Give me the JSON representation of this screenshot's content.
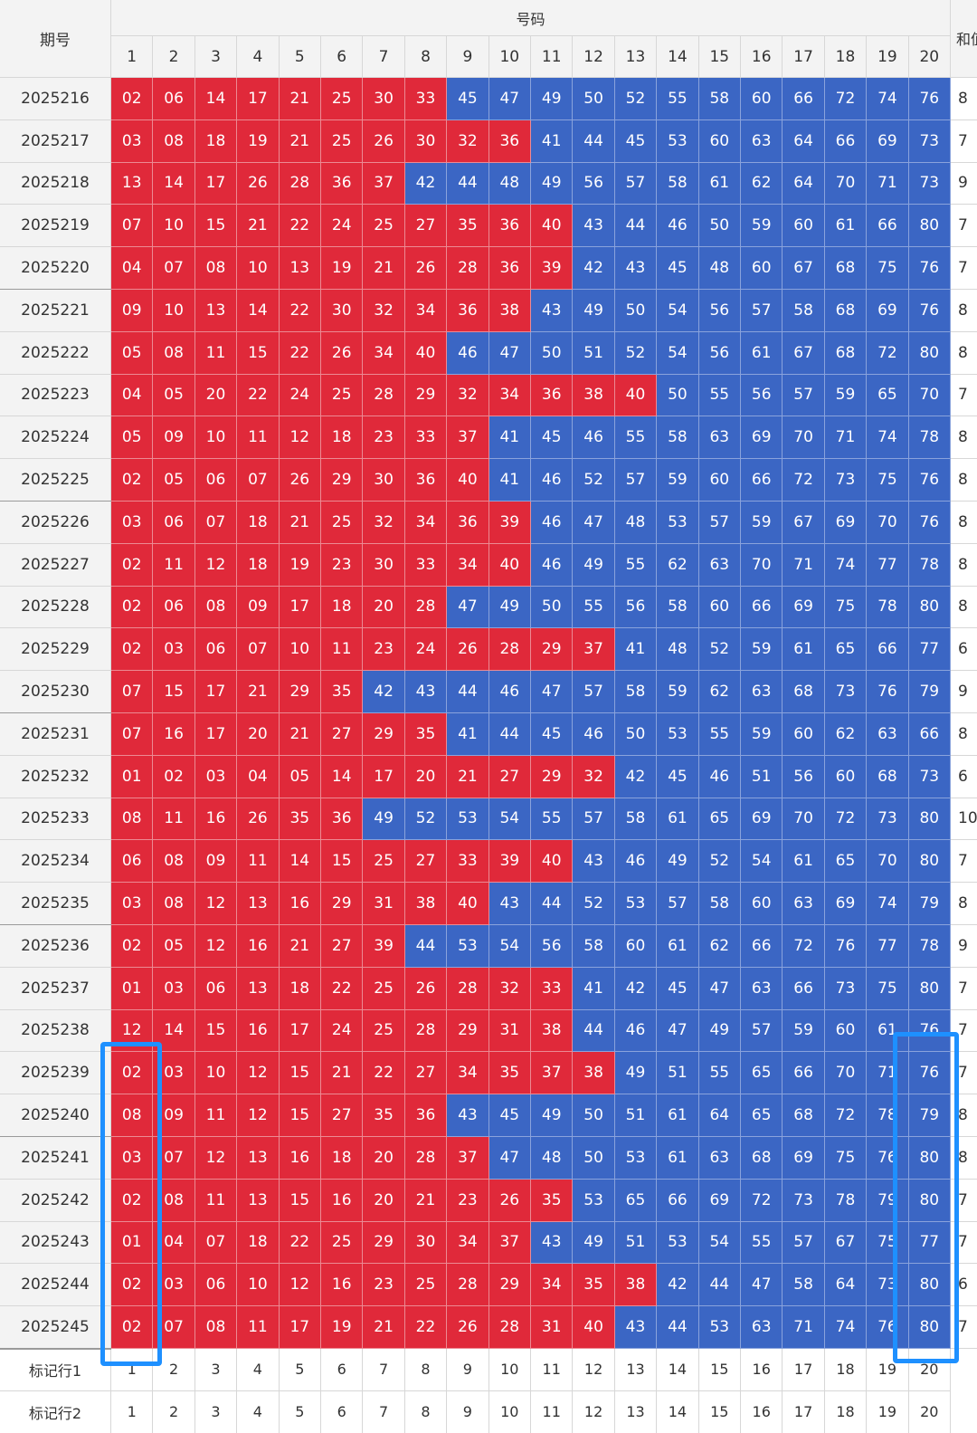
{
  "header": {
    "period_label": "期号",
    "numbers_label": "号码",
    "sum_label": "和值",
    "columns": [
      "1",
      "2",
      "3",
      "4",
      "5",
      "6",
      "7",
      "8",
      "9",
      "10",
      "11",
      "12",
      "13",
      "14",
      "15",
      "16",
      "17",
      "18",
      "19",
      "20"
    ]
  },
  "colors": {
    "red": "#e0293a",
    "blue": "#3b66c4",
    "highlight": "#1e90ff"
  },
  "rows": [
    {
      "period": "2025216",
      "numbers": [
        "02",
        "06",
        "14",
        "17",
        "21",
        "25",
        "30",
        "33",
        "45",
        "47",
        "49",
        "50",
        "52",
        "55",
        "58",
        "60",
        "66",
        "72",
        "74",
        "76"
      ],
      "red_count": 8,
      "sum": "8"
    },
    {
      "period": "2025217",
      "numbers": [
        "03",
        "08",
        "18",
        "19",
        "21",
        "25",
        "26",
        "30",
        "32",
        "36",
        "41",
        "44",
        "45",
        "53",
        "60",
        "63",
        "64",
        "66",
        "69",
        "73"
      ],
      "red_count": 10,
      "sum": "7"
    },
    {
      "period": "2025218",
      "numbers": [
        "13",
        "14",
        "17",
        "26",
        "28",
        "36",
        "37",
        "42",
        "44",
        "48",
        "49",
        "56",
        "57",
        "58",
        "61",
        "62",
        "64",
        "70",
        "71",
        "73"
      ],
      "red_count": 7,
      "sum": "9"
    },
    {
      "period": "2025219",
      "numbers": [
        "07",
        "10",
        "15",
        "21",
        "22",
        "24",
        "25",
        "27",
        "35",
        "36",
        "40",
        "43",
        "44",
        "46",
        "50",
        "59",
        "60",
        "61",
        "66",
        "80"
      ],
      "red_count": 11,
      "sum": "7"
    },
    {
      "period": "2025220",
      "numbers": [
        "04",
        "07",
        "08",
        "10",
        "13",
        "19",
        "21",
        "26",
        "28",
        "36",
        "39",
        "42",
        "43",
        "45",
        "48",
        "60",
        "67",
        "68",
        "75",
        "76"
      ],
      "red_count": 11,
      "sum": "7"
    },
    {
      "period": "2025221",
      "numbers": [
        "09",
        "10",
        "13",
        "14",
        "22",
        "30",
        "32",
        "34",
        "36",
        "38",
        "43",
        "49",
        "50",
        "54",
        "56",
        "57",
        "58",
        "68",
        "69",
        "76"
      ],
      "red_count": 10,
      "sum": "8"
    },
    {
      "period": "2025222",
      "numbers": [
        "05",
        "08",
        "11",
        "15",
        "22",
        "26",
        "34",
        "40",
        "46",
        "47",
        "50",
        "51",
        "52",
        "54",
        "56",
        "61",
        "67",
        "68",
        "72",
        "80"
      ],
      "red_count": 8,
      "sum": "8"
    },
    {
      "period": "2025223",
      "numbers": [
        "04",
        "05",
        "20",
        "22",
        "24",
        "25",
        "28",
        "29",
        "32",
        "34",
        "36",
        "38",
        "40",
        "50",
        "55",
        "56",
        "57",
        "59",
        "65",
        "70"
      ],
      "red_count": 13,
      "sum": "7"
    },
    {
      "period": "2025224",
      "numbers": [
        "05",
        "09",
        "10",
        "11",
        "12",
        "18",
        "23",
        "33",
        "37",
        "41",
        "45",
        "46",
        "55",
        "58",
        "63",
        "69",
        "70",
        "71",
        "74",
        "78"
      ],
      "red_count": 9,
      "sum": "8"
    },
    {
      "period": "2025225",
      "numbers": [
        "02",
        "05",
        "06",
        "07",
        "26",
        "29",
        "30",
        "36",
        "40",
        "41",
        "46",
        "52",
        "57",
        "59",
        "60",
        "66",
        "72",
        "73",
        "75",
        "76"
      ],
      "red_count": 9,
      "sum": "8"
    },
    {
      "period": "2025226",
      "numbers": [
        "03",
        "06",
        "07",
        "18",
        "21",
        "25",
        "32",
        "34",
        "36",
        "39",
        "46",
        "47",
        "48",
        "53",
        "57",
        "59",
        "67",
        "69",
        "70",
        "76"
      ],
      "red_count": 10,
      "sum": "8"
    },
    {
      "period": "2025227",
      "numbers": [
        "02",
        "11",
        "12",
        "18",
        "19",
        "23",
        "30",
        "33",
        "34",
        "40",
        "46",
        "49",
        "55",
        "62",
        "63",
        "70",
        "71",
        "74",
        "77",
        "78"
      ],
      "red_count": 10,
      "sum": "8"
    },
    {
      "period": "2025228",
      "numbers": [
        "02",
        "06",
        "08",
        "09",
        "17",
        "18",
        "20",
        "28",
        "47",
        "49",
        "50",
        "55",
        "56",
        "58",
        "60",
        "66",
        "69",
        "75",
        "78",
        "80"
      ],
      "red_count": 8,
      "sum": "8"
    },
    {
      "period": "2025229",
      "numbers": [
        "02",
        "03",
        "06",
        "07",
        "10",
        "11",
        "23",
        "24",
        "26",
        "28",
        "29",
        "37",
        "41",
        "48",
        "52",
        "59",
        "61",
        "65",
        "66",
        "77"
      ],
      "red_count": 12,
      "sum": "6"
    },
    {
      "period": "2025230",
      "numbers": [
        "07",
        "15",
        "17",
        "21",
        "29",
        "35",
        "42",
        "43",
        "44",
        "46",
        "47",
        "57",
        "58",
        "59",
        "62",
        "63",
        "68",
        "73",
        "76",
        "79"
      ],
      "red_count": 6,
      "sum": "9"
    },
    {
      "period": "2025231",
      "numbers": [
        "07",
        "16",
        "17",
        "20",
        "21",
        "27",
        "29",
        "35",
        "41",
        "44",
        "45",
        "46",
        "50",
        "53",
        "55",
        "59",
        "60",
        "62",
        "63",
        "66"
      ],
      "red_count": 8,
      "sum": "8"
    },
    {
      "period": "2025232",
      "numbers": [
        "01",
        "02",
        "03",
        "04",
        "05",
        "14",
        "17",
        "20",
        "21",
        "27",
        "29",
        "32",
        "42",
        "45",
        "46",
        "51",
        "56",
        "60",
        "68",
        "73"
      ],
      "red_count": 12,
      "sum": "6"
    },
    {
      "period": "2025233",
      "numbers": [
        "08",
        "11",
        "16",
        "26",
        "35",
        "36",
        "49",
        "52",
        "53",
        "54",
        "55",
        "57",
        "58",
        "61",
        "65",
        "69",
        "70",
        "72",
        "73",
        "80"
      ],
      "red_count": 6,
      "sum": "10"
    },
    {
      "period": "2025234",
      "numbers": [
        "06",
        "08",
        "09",
        "11",
        "14",
        "15",
        "25",
        "27",
        "33",
        "39",
        "40",
        "43",
        "46",
        "49",
        "52",
        "54",
        "61",
        "65",
        "70",
        "80"
      ],
      "red_count": 11,
      "sum": "7"
    },
    {
      "period": "2025235",
      "numbers": [
        "03",
        "08",
        "12",
        "13",
        "16",
        "29",
        "31",
        "38",
        "40",
        "43",
        "44",
        "52",
        "53",
        "57",
        "58",
        "60",
        "63",
        "69",
        "74",
        "79"
      ],
      "red_count": 9,
      "sum": "8"
    },
    {
      "period": "2025236",
      "numbers": [
        "02",
        "05",
        "12",
        "16",
        "21",
        "27",
        "39",
        "44",
        "53",
        "54",
        "56",
        "58",
        "60",
        "61",
        "62",
        "66",
        "72",
        "76",
        "77",
        "78"
      ],
      "red_count": 7,
      "sum": "9"
    },
    {
      "period": "2025237",
      "numbers": [
        "01",
        "03",
        "06",
        "13",
        "18",
        "22",
        "25",
        "26",
        "28",
        "32",
        "33",
        "41",
        "42",
        "45",
        "47",
        "63",
        "66",
        "73",
        "75",
        "80"
      ],
      "red_count": 11,
      "sum": "7"
    },
    {
      "period": "2025238",
      "numbers": [
        "12",
        "14",
        "15",
        "16",
        "17",
        "24",
        "25",
        "28",
        "29",
        "31",
        "38",
        "44",
        "46",
        "47",
        "49",
        "57",
        "59",
        "60",
        "61",
        "76"
      ],
      "red_count": 11,
      "sum": "7"
    },
    {
      "period": "2025239",
      "numbers": [
        "02",
        "03",
        "10",
        "12",
        "15",
        "21",
        "22",
        "27",
        "34",
        "35",
        "37",
        "38",
        "49",
        "51",
        "55",
        "65",
        "66",
        "70",
        "71",
        "76"
      ],
      "red_count": 12,
      "sum": "7"
    },
    {
      "period": "2025240",
      "numbers": [
        "08",
        "09",
        "11",
        "12",
        "15",
        "27",
        "35",
        "36",
        "43",
        "45",
        "49",
        "50",
        "51",
        "61",
        "64",
        "65",
        "68",
        "72",
        "78",
        "79"
      ],
      "red_count": 8,
      "sum": "8"
    },
    {
      "period": "2025241",
      "numbers": [
        "03",
        "07",
        "12",
        "13",
        "16",
        "18",
        "20",
        "28",
        "37",
        "47",
        "48",
        "50",
        "53",
        "61",
        "63",
        "68",
        "69",
        "75",
        "76",
        "80"
      ],
      "red_count": 9,
      "sum": "8"
    },
    {
      "period": "2025242",
      "numbers": [
        "02",
        "08",
        "11",
        "13",
        "15",
        "16",
        "20",
        "21",
        "23",
        "26",
        "35",
        "53",
        "65",
        "66",
        "69",
        "72",
        "73",
        "78",
        "79",
        "80"
      ],
      "red_count": 11,
      "sum": "7"
    },
    {
      "period": "2025243",
      "numbers": [
        "01",
        "04",
        "07",
        "18",
        "22",
        "25",
        "29",
        "30",
        "34",
        "37",
        "43",
        "49",
        "51",
        "53",
        "54",
        "55",
        "57",
        "67",
        "75",
        "77"
      ],
      "red_count": 10,
      "sum": "7"
    },
    {
      "period": "2025244",
      "numbers": [
        "02",
        "03",
        "06",
        "10",
        "12",
        "16",
        "23",
        "25",
        "28",
        "29",
        "34",
        "35",
        "38",
        "42",
        "44",
        "47",
        "58",
        "64",
        "73",
        "80"
      ],
      "red_count": 13,
      "sum": "6"
    },
    {
      "period": "2025245",
      "numbers": [
        "02",
        "07",
        "08",
        "11",
        "17",
        "19",
        "21",
        "22",
        "26",
        "28",
        "31",
        "40",
        "43",
        "44",
        "53",
        "63",
        "71",
        "74",
        "76",
        "80"
      ],
      "red_count": 12,
      "sum": "7"
    }
  ],
  "markers": [
    {
      "label": "标记行1",
      "values": [
        "1",
        "2",
        "3",
        "4",
        "5",
        "6",
        "7",
        "8",
        "9",
        "10",
        "11",
        "12",
        "13",
        "14",
        "15",
        "16",
        "17",
        "18",
        "19",
        "20"
      ]
    },
    {
      "label": "标记行2",
      "values": [
        "1",
        "2",
        "3",
        "4",
        "5",
        "6",
        "7",
        "8",
        "9",
        "10",
        "11",
        "12",
        "13",
        "14",
        "15",
        "16",
        "17",
        "18",
        "19",
        "20"
      ]
    }
  ]
}
